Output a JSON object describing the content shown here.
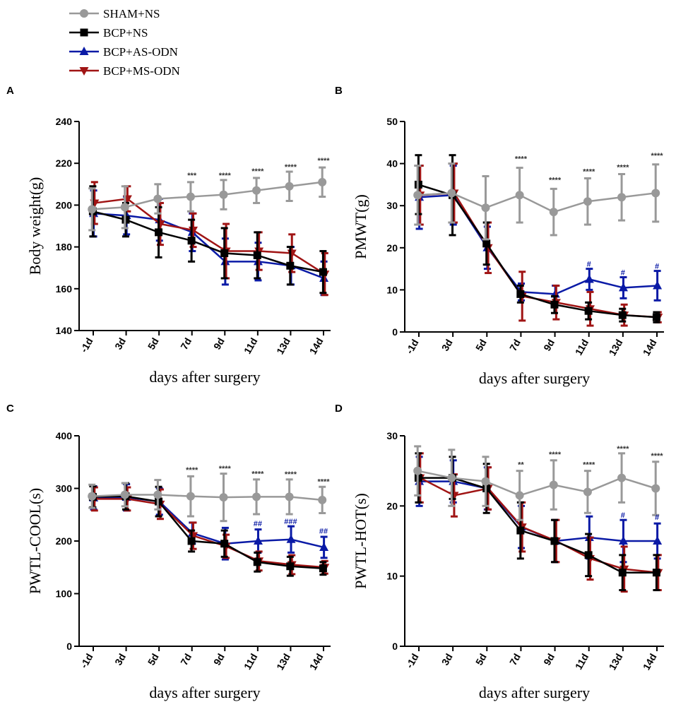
{
  "legend": [
    {
      "name": "SHAM+NS",
      "color": "#999999",
      "marker": "circle"
    },
    {
      "name": "BCP+NS",
      "color": "#000000",
      "marker": "square"
    },
    {
      "name": "BCP+AS-ODN",
      "color": "#0a1aa6",
      "marker": "triangle-up"
    },
    {
      "name": "BCP+MS-ODN",
      "color": "#a01414",
      "marker": "triangle-down"
    }
  ],
  "chart_data": [
    {
      "panel": "A",
      "type": "line",
      "categories": [
        "-1d",
        "3d",
        "5d",
        "7d",
        "9d",
        "11d",
        "13d",
        "14d"
      ],
      "xlabel": "days after surgery",
      "ylabel": "Body weight(g)",
      "ylim": [
        140,
        240
      ],
      "yticks": [
        140,
        160,
        180,
        200,
        220,
        240
      ],
      "series": [
        {
          "name": "SHAM+NS",
          "values": [
            198,
            199,
            203,
            204,
            205,
            207,
            209,
            211
          ],
          "errors": [
            10,
            10,
            7,
            7,
            7,
            6,
            7,
            7
          ]
        },
        {
          "name": "BCP+NS",
          "values": [
            197,
            193,
            187,
            183,
            177,
            176,
            171,
            168
          ],
          "errors": [
            12,
            8,
            12,
            10,
            12,
            11,
            9,
            10
          ]
        },
        {
          "name": "BCP+AS-ODN",
          "values": [
            196,
            195,
            193,
            187,
            173,
            173,
            171,
            165
          ],
          "errors": [
            11,
            9,
            10,
            9,
            11,
            9,
            9,
            8
          ]
        },
        {
          "name": "BCP+MS-ODN",
          "values": [
            201,
            203,
            191,
            188,
            178,
            178,
            177,
            167
          ],
          "errors": [
            10,
            6,
            10,
            8,
            13,
            9,
            9,
            10
          ]
        }
      ],
      "annotations": [
        {
          "category": "7d",
          "text": "***",
          "value": 213,
          "color": "#333333"
        },
        {
          "category": "9d",
          "text": "****",
          "value": 213,
          "color": "#333333"
        },
        {
          "category": "11d",
          "text": "****",
          "value": 215,
          "color": "#333333"
        },
        {
          "category": "13d",
          "text": "****",
          "value": 217,
          "color": "#333333"
        },
        {
          "category": "14d",
          "text": "****",
          "value": 220,
          "color": "#333333"
        }
      ]
    },
    {
      "panel": "B",
      "type": "line",
      "categories": [
        "-1d",
        "3d",
        "5d",
        "7d",
        "9d",
        "11d",
        "13d",
        "14d"
      ],
      "xlabel": "days after surgery",
      "ylabel": "PMWT(g)",
      "ylim": [
        0,
        50
      ],
      "yticks": [
        0,
        10,
        20,
        30,
        40,
        50
      ],
      "series": [
        {
          "name": "SHAM+NS",
          "values": [
            32.5,
            33,
            29.5,
            32.5,
            28.5,
            31,
            32,
            33
          ],
          "errors": [
            7,
            7,
            7.5,
            6.5,
            5.5,
            5.5,
            5.5,
            6.8
          ]
        },
        {
          "name": "BCP+NS",
          "values": [
            35,
            32.5,
            21,
            9,
            6.5,
            5,
            4,
            3.5
          ],
          "errors": [
            7,
            9.5,
            5,
            2,
            2,
            2,
            1.5,
            1.2
          ]
        },
        {
          "name": "BCP+AS-ODN",
          "values": [
            32,
            32.5,
            20,
            9.5,
            9,
            12.5,
            10.5,
            11
          ],
          "errors": [
            7.5,
            7,
            5,
            2,
            2,
            2.5,
            2.5,
            3.5
          ]
        },
        {
          "name": "BCP+MS-ODN",
          "values": [
            32.5,
            33,
            20,
            8.5,
            7,
            5.5,
            4,
            3.5
          ],
          "errors": [
            7,
            7,
            6,
            5.8,
            4,
            4,
            2.5,
            1.2
          ]
        }
      ],
      "annotations": [
        {
          "category": "7d",
          "text": "****",
          "value": 40.5,
          "color": "#333333"
        },
        {
          "category": "9d",
          "text": "****",
          "value": 35.5,
          "color": "#333333"
        },
        {
          "category": "11d",
          "text": "****",
          "value": 37.5,
          "color": "#333333"
        },
        {
          "category": "13d",
          "text": "****",
          "value": 38.5,
          "color": "#333333"
        },
        {
          "category": "14d",
          "text": "****",
          "value": 41.3,
          "color": "#333333"
        },
        {
          "category": "11d",
          "text": "#",
          "value": 15.5,
          "color": "#0a1aa6"
        },
        {
          "category": "13d",
          "text": "#",
          "value": 13.5,
          "color": "#0a1aa6"
        },
        {
          "category": "14d",
          "text": "#",
          "value": 15,
          "color": "#0a1aa6"
        }
      ]
    },
    {
      "panel": "C",
      "type": "line",
      "categories": [
        "-1d",
        "3d",
        "5d",
        "7d",
        "9d",
        "11d",
        "13d",
        "14d"
      ],
      "xlabel": "days after surgery",
      "ylabel": "PWTL-COOL(s)",
      "ylim": [
        0,
        400
      ],
      "yticks": [
        0,
        100,
        200,
        300,
        400
      ],
      "series": [
        {
          "name": "SHAM+NS",
          "values": [
            285,
            288,
            288,
            285,
            283,
            284,
            284,
            278
          ],
          "errors": [
            22,
            22,
            28,
            38,
            45,
            33,
            33,
            25
          ]
        },
        {
          "name": "BCP+NS",
          "values": [
            284,
            285,
            275,
            200,
            195,
            160,
            152,
            148
          ],
          "errors": [
            20,
            25,
            28,
            20,
            25,
            18,
            18,
            12
          ]
        },
        {
          "name": "BCP+AS-ODN",
          "values": [
            282,
            283,
            275,
            215,
            195,
            200,
            203,
            188
          ],
          "errors": [
            22,
            25,
            25,
            20,
            30,
            22,
            25,
            20
          ]
        },
        {
          "name": "BCP+MS-ODN",
          "values": [
            280,
            280,
            270,
            210,
            190,
            162,
            155,
            150
          ],
          "errors": [
            22,
            22,
            28,
            25,
            22,
            18,
            18,
            12
          ]
        }
      ],
      "annotations": [
        {
          "category": "7d",
          "text": "****",
          "value": 330,
          "color": "#333333"
        },
        {
          "category": "9d",
          "text": "****",
          "value": 333,
          "color": "#333333"
        },
        {
          "category": "11d",
          "text": "****",
          "value": 323,
          "color": "#333333"
        },
        {
          "category": "13d",
          "text": "****",
          "value": 322,
          "color": "#333333"
        },
        {
          "category": "14d",
          "text": "****",
          "value": 308,
          "color": "#333333"
        },
        {
          "category": "11d",
          "text": "##",
          "value": 228,
          "color": "#0a1aa6"
        },
        {
          "category": "13d",
          "text": "###",
          "value": 232,
          "color": "#0a1aa6"
        },
        {
          "category": "14d",
          "text": "##",
          "value": 214,
          "color": "#0a1aa6"
        }
      ]
    },
    {
      "panel": "D",
      "type": "line",
      "categories": [
        "-1d",
        "3d",
        "5d",
        "7d",
        "9d",
        "11d",
        "13d",
        "14d"
      ],
      "xlabel": "days after surgery",
      "ylabel": "PWTL-HOT(s)",
      "ylim": [
        0,
        30
      ],
      "yticks": [
        0,
        10,
        20,
        30
      ],
      "series": [
        {
          "name": "SHAM+NS",
          "values": [
            25,
            24,
            23.5,
            21.5,
            23,
            22,
            24,
            22.5
          ],
          "errors": [
            3.5,
            4,
            3.5,
            3.5,
            3.5,
            3,
            3.5,
            3.8
          ]
        },
        {
          "name": "BCP+NS",
          "values": [
            24,
            24,
            22.5,
            16.5,
            15,
            13,
            10.5,
            10.5
          ],
          "errors": [
            3.5,
            3,
            3.5,
            4,
            3,
            3,
            2.5,
            2.5
          ]
        },
        {
          "name": "BCP+AS-ODN",
          "values": [
            23.5,
            23.5,
            22.5,
            17,
            15,
            15.5,
            15,
            15
          ],
          "errors": [
            3.5,
            3,
            3,
            3,
            3,
            3,
            3,
            2.5
          ]
        },
        {
          "name": "BCP+MS-ODN",
          "values": [
            24,
            21.5,
            22.5,
            17,
            15,
            12.5,
            11,
            10.5
          ],
          "errors": [
            3.5,
            3,
            3,
            3.5,
            3,
            3,
            3.2,
            2.5
          ]
        }
      ],
      "annotations": [
        {
          "category": "7d",
          "text": "**",
          "value": 25.5,
          "color": "#333333"
        },
        {
          "category": "9d",
          "text": "****",
          "value": 27,
          "color": "#333333"
        },
        {
          "category": "11d",
          "text": "****",
          "value": 25.5,
          "color": "#333333"
        },
        {
          "category": "13d",
          "text": "****",
          "value": 27.8,
          "color": "#333333"
        },
        {
          "category": "14d",
          "text": "****",
          "value": 26.8,
          "color": "#333333"
        },
        {
          "category": "13d",
          "text": "#",
          "value": 18.3,
          "color": "#0a1aa6"
        },
        {
          "category": "14d",
          "text": "#",
          "value": 18,
          "color": "#0a1aa6"
        }
      ]
    }
  ]
}
